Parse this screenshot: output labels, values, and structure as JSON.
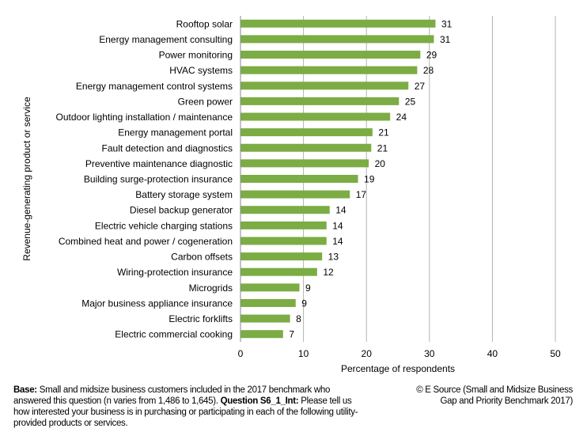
{
  "chart_data": {
    "type": "bar",
    "orientation": "horizontal",
    "categories": [
      "Rooftop solar",
      "Energy management consulting",
      "Power monitoring",
      "HVAC systems",
      "Energy management control systems",
      "Green power",
      "Outdoor lighting installation / maintenance",
      "Energy management portal",
      "Fault detection and diagnostics",
      "Preventive maintenance diagnostic",
      "Building surge-protection insurance",
      "Battery storage system",
      "Diesel backup generator",
      "Electric vehicle charging stations",
      "Combined heat and power / cogeneration",
      "Carbon offsets",
      "Wiring-protection insurance",
      "Microgrids",
      "Major business appliance insurance",
      "Electric forklifts",
      "Electric commercial cooking"
    ],
    "values": [
      30.9,
      30.65,
      28.5,
      28.0,
      26.6,
      25.1,
      23.7,
      20.9,
      20.7,
      20.3,
      18.6,
      17.3,
      14.1,
      13.6,
      13.6,
      12.9,
      12.1,
      9.3,
      8.7,
      7.8,
      6.7
    ],
    "data_labels": [
      "31",
      "31",
      "29",
      "28",
      "27",
      "25",
      "24",
      "21",
      "21",
      "20",
      "19",
      "17",
      "14",
      "14",
      "14",
      "13",
      "12",
      "9",
      "9",
      "8",
      "7"
    ],
    "xlabel": "Percentage  of respondents",
    "ylabel": "Revenue-generating  product or service",
    "xlim": [
      0,
      50
    ],
    "xticks": [
      "0",
      "10",
      "20",
      "30",
      "40",
      "50"
    ],
    "grid": "vertical",
    "bar_color": "#7cac44",
    "grid_color": "#b3b3b3"
  },
  "footnote": {
    "base_label": "Base:",
    "base_text": " Small and midsize business customers included in the 2017 benchmark who answered this question (n varies from 1,486 to 1,645). ",
    "question_label": "Question  S6_1_Int:",
    "question_text": " Please tell us how interested your business is in purchasing or participating in each of the following utility-provided products or services."
  },
  "credit": {
    "line1": "© E Source (Small and Midsize Business",
    "line2": "Gap and Priority Benchmark 2017)"
  }
}
